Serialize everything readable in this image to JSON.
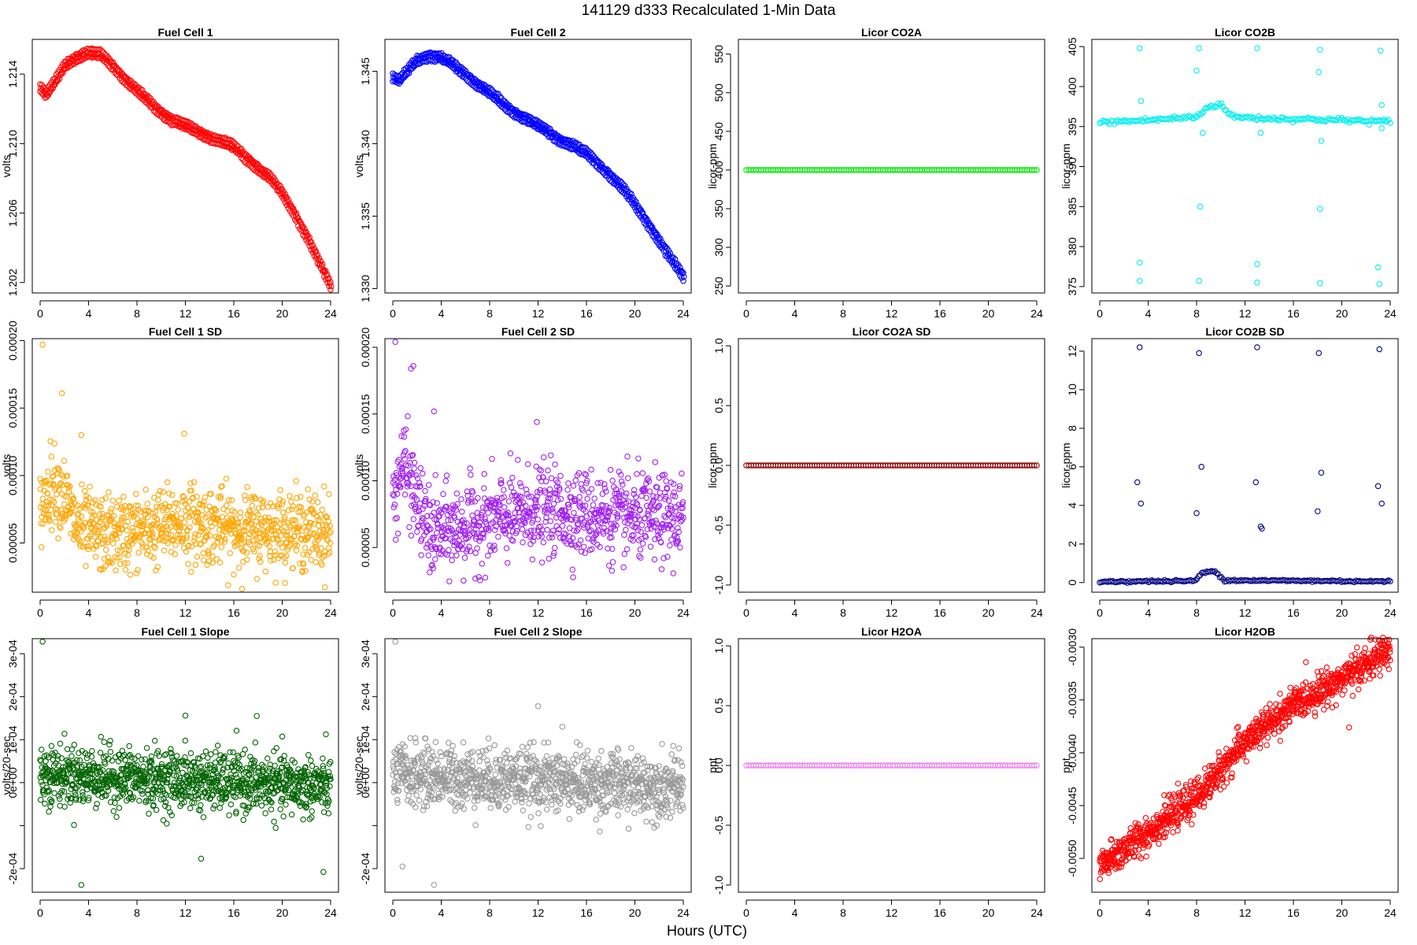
{
  "figure": {
    "title": "141129   d333   Recalculated 1-Min Data",
    "xlabel": "Hours (UTC)",
    "x_ticks": [
      0,
      4,
      8,
      12,
      16,
      20,
      24
    ],
    "xlim": [
      0,
      24
    ]
  },
  "chart_data": [
    {
      "id": "fc1",
      "type": "scatter",
      "title": "Fuel Cell 1",
      "ylabel": "volts",
      "ylim": [
        1.2014,
        1.216
      ],
      "y_ticks": [
        1.202,
        1.206,
        1.21,
        1.214
      ],
      "y_tick_labels": [
        "1.202",
        "1.206",
        "1.210",
        "1.214"
      ],
      "color": "#ff0000",
      "points": 180,
      "dual_band_offset": 0.00045,
      "curve": [
        [
          0,
          1.2132
        ],
        [
          0.5,
          1.2128
        ],
        [
          1.2,
          1.2135
        ],
        [
          2.0,
          1.2145
        ],
        [
          3.0,
          1.215
        ],
        [
          4.0,
          1.2152
        ],
        [
          5.0,
          1.2151
        ],
        [
          6.0,
          1.2145
        ],
        [
          7.0,
          1.2137
        ],
        [
          8.0,
          1.213
        ],
        [
          9.0,
          1.2124
        ],
        [
          10.0,
          1.2118
        ],
        [
          11.0,
          1.2113
        ],
        [
          12.0,
          1.211
        ],
        [
          13.0,
          1.2107
        ],
        [
          14.0,
          1.2104
        ],
        [
          15.0,
          1.2101
        ],
        [
          16.0,
          1.2098
        ],
        [
          17.0,
          1.2092
        ],
        [
          18.0,
          1.2086
        ],
        [
          19.0,
          1.208
        ],
        [
          20.0,
          1.2071
        ],
        [
          21.0,
          1.206
        ],
        [
          22.0,
          1.2047
        ],
        [
          23.0,
          1.2032
        ],
        [
          24.0,
          1.2018
        ]
      ],
      "noise": 0.00012
    },
    {
      "id": "fc2",
      "type": "scatter",
      "title": "Fuel Cell 2",
      "ylabel": "volts",
      "ylim": [
        1.3297,
        1.3472
      ],
      "y_ticks": [
        1.33,
        1.335,
        1.34,
        1.345
      ],
      "y_tick_labels": [
        "1.330",
        "1.335",
        "1.340",
        "1.345"
      ],
      "color": "#0000ff",
      "points": 180,
      "dual_band_offset": 0.0005,
      "curve": [
        [
          0,
          1.3446
        ],
        [
          0.5,
          1.3443
        ],
        [
          1.2,
          1.345
        ],
        [
          2.0,
          1.3458
        ],
        [
          3.0,
          1.3461
        ],
        [
          4.0,
          1.3459
        ],
        [
          5.0,
          1.3454
        ],
        [
          6.0,
          1.3448
        ],
        [
          7.0,
          1.3441
        ],
        [
          8.0,
          1.3435
        ],
        [
          9.0,
          1.3428
        ],
        [
          10.0,
          1.3422
        ],
        [
          11.0,
          1.3417
        ],
        [
          12.0,
          1.3412
        ],
        [
          13.0,
          1.3407
        ],
        [
          14.0,
          1.3402
        ],
        [
          15.0,
          1.3398
        ],
        [
          16.0,
          1.3393
        ],
        [
          17.0,
          1.3386
        ],
        [
          18.0,
          1.3378
        ],
        [
          19.0,
          1.3369
        ],
        [
          20.0,
          1.3358
        ],
        [
          21.0,
          1.3346
        ],
        [
          22.0,
          1.3333
        ],
        [
          23.0,
          1.332
        ],
        [
          24.0,
          1.3308
        ]
      ],
      "noise": 0.00015
    },
    {
      "id": "co2a",
      "type": "scatter",
      "title": "Licor CO2A",
      "ylabel": "licor-ppm",
      "ylim": [
        241,
        569
      ],
      "y_ticks": [
        250,
        300,
        350,
        400,
        450,
        500,
        550
      ],
      "y_tick_labels": [
        "250",
        "300",
        "350",
        "400",
        "450",
        "500",
        "550"
      ],
      "color": "#00ee00",
      "points": 120,
      "curve": [
        [
          0,
          400
        ],
        [
          24,
          400
        ]
      ],
      "noise": 0
    },
    {
      "id": "co2b",
      "type": "scatter",
      "title": "Licor CO2B",
      "ylabel": "licor-ppm",
      "ylim": [
        374.2,
        405.9
      ],
      "y_ticks": [
        375,
        380,
        385,
        390,
        395,
        400,
        405
      ],
      "y_tick_labels": [
        "375",
        "380",
        "385",
        "390",
        "395",
        "400",
        "405"
      ],
      "color": "#00eeee",
      "points": 180,
      "curve": [
        [
          0,
          395.5
        ],
        [
          4,
          395.8
        ],
        [
          8,
          396.2
        ],
        [
          9,
          397.5
        ],
        [
          10,
          397.8
        ],
        [
          11,
          396.2
        ],
        [
          14,
          396.0
        ],
        [
          18,
          395.9
        ],
        [
          24,
          395.6
        ]
      ],
      "noise": 0.15,
      "outliers": [
        [
          3.3,
          404.8
        ],
        [
          3.4,
          398.2
        ],
        [
          3.3,
          378.0
        ],
        [
          3.3,
          375.7
        ],
        [
          8.2,
          404.8
        ],
        [
          8.0,
          402.0
        ],
        [
          8.3,
          385.0
        ],
        [
          8.2,
          375.7
        ],
        [
          8.5,
          394.2
        ],
        [
          13.0,
          404.8
        ],
        [
          13.0,
          377.8
        ],
        [
          13.0,
          375.5
        ],
        [
          13.3,
          394.2
        ],
        [
          18.2,
          404.6
        ],
        [
          18.1,
          401.8
        ],
        [
          18.2,
          384.7
        ],
        [
          18.3,
          393.2
        ],
        [
          18.2,
          375.4
        ],
        [
          23.2,
          404.5
        ],
        [
          23.3,
          397.7
        ],
        [
          23.0,
          377.4
        ],
        [
          23.1,
          375.3
        ],
        [
          23.3,
          394.8
        ]
      ]
    },
    {
      "id": "fc1sd",
      "type": "scatter",
      "title": "Fuel Cell 1 SD",
      "ylabel": "volts",
      "ylim": [
        1.35e-05,
        0.0002015
      ],
      "y_ticks": [
        5e-05,
        0.0001,
        0.00015,
        0.0002
      ],
      "y_tick_labels": [
        "0.00005",
        "0.00010",
        "0.00015",
        "0.00020"
      ],
      "color": "#ffa500",
      "points": 900,
      "curve": [
        [
          0,
          7.5e-05
        ],
        [
          1,
          9.5e-05
        ],
        [
          2,
          8.5e-05
        ],
        [
          3,
          6.2e-05
        ],
        [
          5,
          5.6e-05
        ],
        [
          8,
          5.8e-05
        ],
        [
          12,
          6.6e-05
        ],
        [
          16,
          6e-05
        ],
        [
          20,
          6e-05
        ],
        [
          24,
          5.8e-05
        ]
      ],
      "noise": 1.4e-05,
      "outliers": [
        [
          0.2,
          0.000197
        ],
        [
          1.8,
          0.000161
        ],
        [
          3.4,
          0.00013
        ],
        [
          11.9,
          0.000131
        ]
      ]
    },
    {
      "id": "fc2sd",
      "type": "scatter",
      "title": "Fuel Cell 2 SD",
      "ylabel": "volts",
      "ylim": [
        1.65e-05,
        0.0002065
      ],
      "y_ticks": [
        5e-05,
        0.0001,
        0.00015,
        0.0002
      ],
      "y_tick_labels": [
        "0.00005",
        "0.00010",
        "0.00015",
        "0.00020"
      ],
      "color": "#a020f0",
      "points": 900,
      "curve": [
        [
          0,
          8e-05
        ],
        [
          0.8,
          0.000115
        ],
        [
          2,
          8.5e-05
        ],
        [
          3,
          6e-05
        ],
        [
          6,
          6.5e-05
        ],
        [
          12,
          7.8e-05
        ],
        [
          16,
          7.5e-05
        ],
        [
          20,
          7.2e-05
        ],
        [
          24,
          7.2e-05
        ]
      ],
      "noise": 1.6e-05,
      "outliers": [
        [
          0.2,
          0.000204
        ],
        [
          1.5,
          0.000184
        ],
        [
          1.7,
          0.000186
        ],
        [
          3.4,
          0.000152
        ],
        [
          11.9,
          0.000144
        ]
      ]
    },
    {
      "id": "co2asd",
      "type": "scatter",
      "title": "Licor CO2A SD",
      "ylabel": "licor-ppm",
      "ylim": [
        -1.06,
        1.06
      ],
      "y_ticks": [
        -1.0,
        -0.5,
        0.0,
        0.5,
        1.0
      ],
      "y_tick_labels": [
        "-1.0",
        "-0.5",
        "0.0",
        "0.5",
        "1.0"
      ],
      "color": "#8b0000",
      "points": 120,
      "curve": [
        [
          0,
          0
        ],
        [
          24,
          0
        ]
      ],
      "noise": 0
    },
    {
      "id": "co2bsd",
      "type": "scatter",
      "title": "Licor CO2B SD",
      "ylabel": "licor-ppm",
      "ylim": [
        -0.5,
        12.65
      ],
      "y_ticks": [
        0,
        2,
        4,
        6,
        8,
        10,
        12
      ],
      "y_tick_labels": [
        "0",
        "2",
        "4",
        "6",
        "8",
        "10",
        "12"
      ],
      "color": "#000080",
      "points": 180,
      "curve": [
        [
          0,
          0.05
        ],
        [
          7.8,
          0.08
        ],
        [
          8.5,
          0.5
        ],
        [
          9.5,
          0.6
        ],
        [
          10.3,
          0.12
        ],
        [
          24,
          0.06
        ]
      ],
      "noise": 0.03,
      "outliers": [
        [
          3.3,
          12.2
        ],
        [
          3.1,
          5.2
        ],
        [
          3.4,
          4.1
        ],
        [
          8.2,
          11.9
        ],
        [
          8.4,
          6.0
        ],
        [
          8.0,
          3.6
        ],
        [
          13.0,
          12.2
        ],
        [
          12.9,
          5.2
        ],
        [
          13.3,
          2.9
        ],
        [
          13.4,
          2.8
        ],
        [
          18.1,
          11.9
        ],
        [
          18.3,
          5.7
        ],
        [
          18.0,
          3.7
        ],
        [
          23.1,
          12.1
        ],
        [
          23.0,
          5.0
        ],
        [
          23.3,
          4.1
        ]
      ]
    },
    {
      "id": "fc1slope",
      "type": "scatter",
      "title": "Fuel Cell 1 Slope",
      "ylabel": "volts/20-sec",
      "ylim": [
        -0.000255,
        0.000335
      ],
      "y_ticks": [
        -0.0002,
        -0.0001,
        0,
        0.0001,
        0.0002,
        0.0003
      ],
      "y_tick_labels": [
        "-2e-04",
        "",
        "0e+00",
        "1e-04",
        "2e-04",
        "3e-04"
      ],
      "color": "#006400",
      "points": 1100,
      "curve": [
        [
          0,
          2e-05
        ],
        [
          24,
          -1e-05
        ]
      ],
      "noise": 3.4e-05,
      "outliers": [
        [
          0.2,
          0.000328
        ],
        [
          3.4,
          -0.000238
        ],
        [
          23.4,
          -0.000208
        ],
        [
          17.9,
          0.000155
        ],
        [
          12.0,
          0.000156
        ],
        [
          13.3,
          -0.000177
        ]
      ]
    },
    {
      "id": "fc2slope",
      "type": "scatter",
      "title": "Fuel Cell 2 Slope",
      "ylabel": "volts/20-sec",
      "ylim": [
        -0.000255,
        0.000335
      ],
      "y_ticks": [
        -0.0002,
        -0.0001,
        0,
        0.0001,
        0.0002,
        0.0003
      ],
      "y_tick_labels": [
        "-2e-04",
        "",
        "0e+00",
        "1e-04",
        "2e-04",
        "3e-04"
      ],
      "color": "#999999",
      "points": 1100,
      "curve": [
        [
          0,
          2e-05
        ],
        [
          24,
          -1e-05
        ]
      ],
      "noise": 3.6e-05,
      "outliers": [
        [
          0.2,
          0.000328
        ],
        [
          3.4,
          -0.000238
        ],
        [
          0.8,
          -0.000195
        ],
        [
          12.0,
          0.000178
        ],
        [
          14.0,
          0.00013
        ]
      ]
    },
    {
      "id": "h2oa",
      "type": "scatter",
      "title": "Licor H2OA",
      "ylabel": "ppt",
      "ylim": [
        -1.06,
        1.06
      ],
      "y_ticks": [
        -1.0,
        -0.5,
        0.0,
        0.5,
        1.0
      ],
      "y_tick_labels": [
        "-1.0",
        "-0.5",
        "0.0",
        "0.5",
        "1.0"
      ],
      "color": "#ee82ee",
      "points": 120,
      "curve": [
        [
          0,
          0
        ],
        [
          24,
          0
        ]
      ],
      "noise": 0
    },
    {
      "id": "h2ob",
      "type": "scatter",
      "title": "Licor H2OB",
      "ylabel": "ppt",
      "ylim": [
        -0.00532,
        -0.00292
      ],
      "y_ticks": [
        -0.005,
        -0.0045,
        -0.004,
        -0.0035,
        -0.003
      ],
      "y_tick_labels": [
        "-0.0050",
        "-0.0045",
        "-0.0040",
        "-0.0035",
        "-0.0030"
      ],
      "color": "#ff0000",
      "points": 1100,
      "curve": [
        [
          0,
          -0.00508
        ],
        [
          4,
          -0.00475
        ],
        [
          8,
          -0.00442
        ],
        [
          12,
          -0.0039
        ],
        [
          16,
          -0.00355
        ],
        [
          20,
          -0.0033
        ],
        [
          24,
          -0.00302
        ]
      ],
      "noise": 8e-05,
      "outliers": [
        [
          20.6,
          -0.00376
        ]
      ]
    }
  ]
}
